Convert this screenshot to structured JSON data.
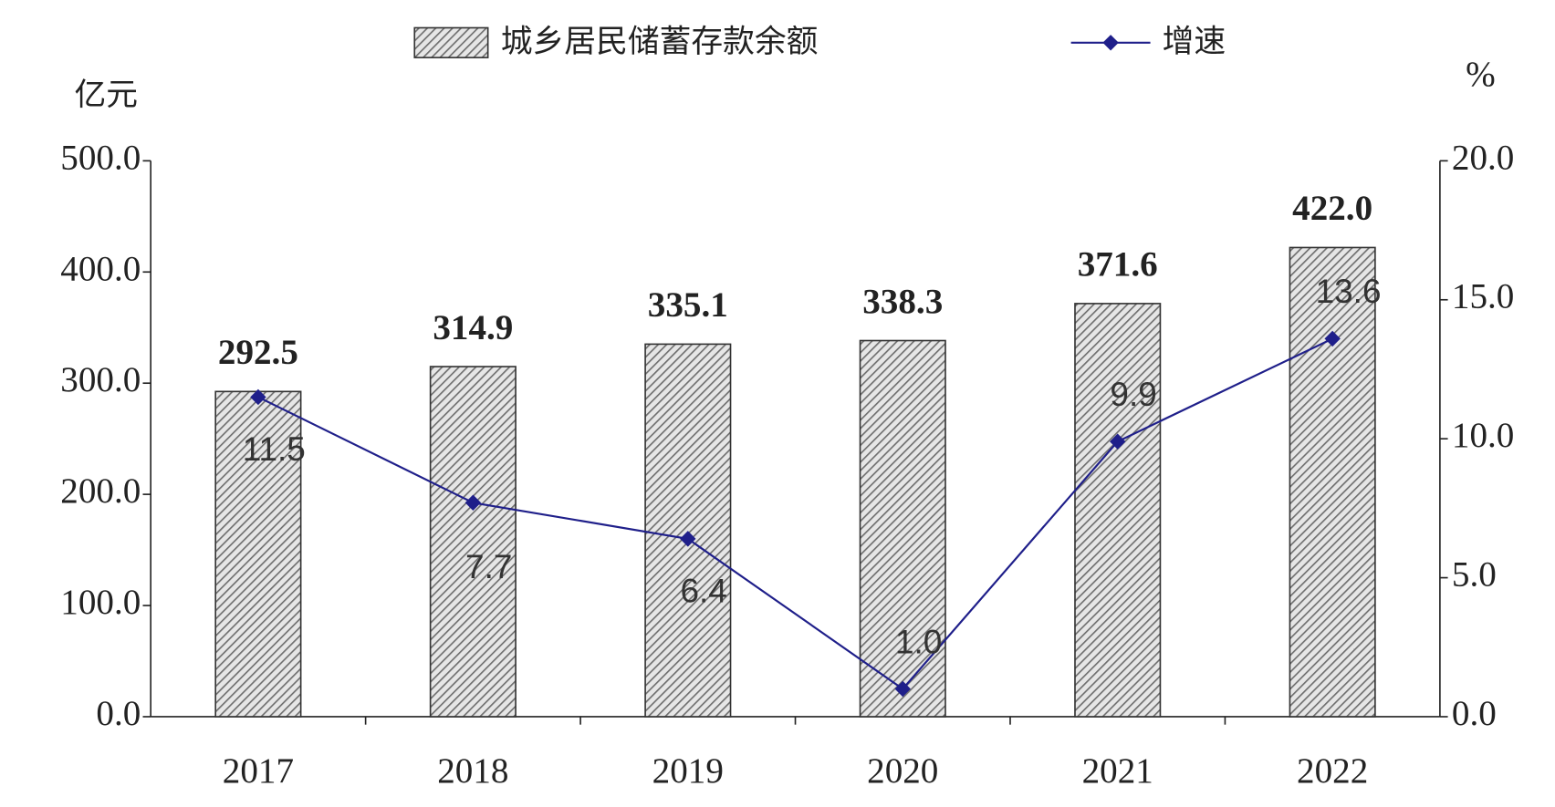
{
  "chart_data": {
    "type": "bar",
    "categories": [
      "2017",
      "2018",
      "2019",
      "2020",
      "2021",
      "2022"
    ],
    "series": [
      {
        "name": "城乡居民储蓄存款余额",
        "color": "#8c8c8c",
        "values": [
          292.5,
          314.9,
          335.1,
          338.3,
          371.6,
          422.0
        ],
        "value_labels": [
          "292.5",
          "314.9",
          "335.1",
          "338.3",
          "371.6",
          "422.0"
        ]
      },
      {
        "name": "增速",
        "type": "line",
        "axis": "y2",
        "color": "#1f1f8a",
        "values": [
          11.5,
          7.7,
          6.4,
          1.0,
          9.9,
          13.6
        ],
        "value_labels": [
          "11.5",
          "7.7",
          "6.4",
          "1.0",
          "9.9",
          "13.6"
        ]
      }
    ],
    "ylabel": "亿元",
    "y2label": "%",
    "ylim": [
      0,
      500
    ],
    "yticks": [
      {
        "value": 0,
        "label": "0.0"
      },
      {
        "value": 100,
        "label": "100.0"
      },
      {
        "value": 200,
        "label": "200.0"
      },
      {
        "value": 300,
        "label": "300.0"
      },
      {
        "value": 400,
        "label": "400.0"
      },
      {
        "value": 500,
        "label": "500.0"
      }
    ],
    "y2lim": [
      0,
      20
    ],
    "y2ticks": [
      {
        "value": 0,
        "label": "0.0"
      },
      {
        "value": 5,
        "label": "5.0"
      },
      {
        "value": 10,
        "label": "10.0"
      },
      {
        "value": 15,
        "label": "15.0"
      },
      {
        "value": 20,
        "label": "20.0"
      }
    ],
    "legend": "top"
  }
}
